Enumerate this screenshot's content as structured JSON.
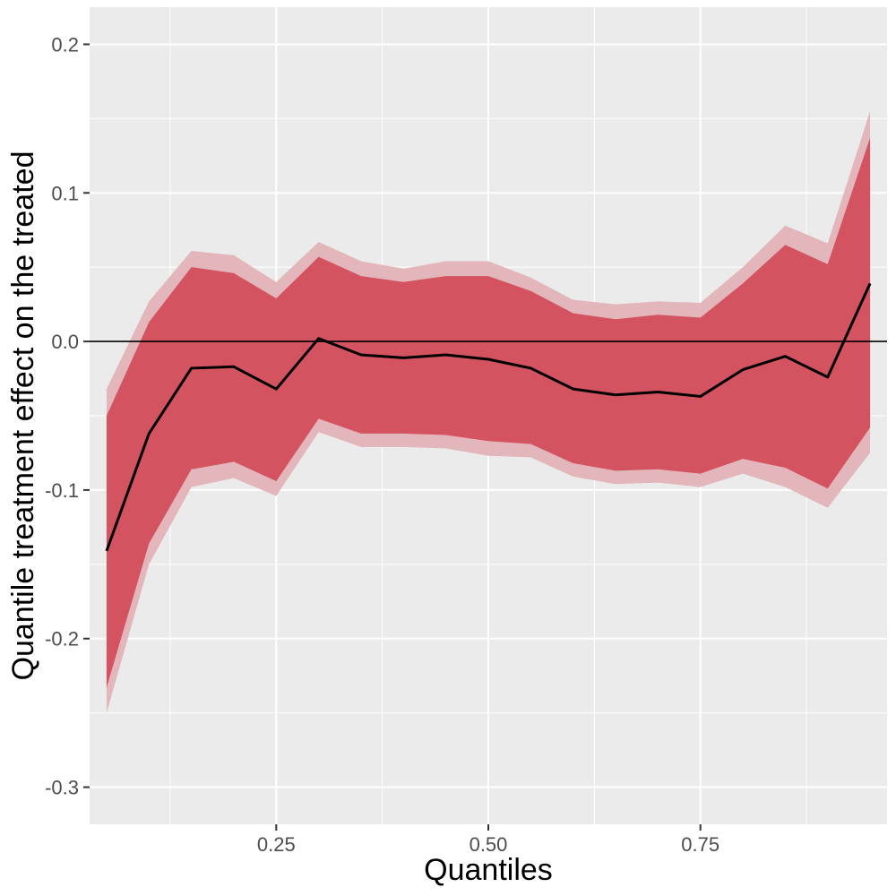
{
  "chart_data": {
    "type": "area",
    "title": "",
    "xlabel": "Quantiles",
    "ylabel": "Quantile treatment effect on the treated",
    "xlim": [
      0.03,
      0.97
    ],
    "ylim": [
      -0.325,
      0.225
    ],
    "x_ticks": [
      {
        "value": 0.25,
        "label": "0.25"
      },
      {
        "value": 0.5,
        "label": "0.50"
      },
      {
        "value": 0.75,
        "label": "0.75"
      }
    ],
    "y_ticks": [
      {
        "value": -0.3,
        "label": "-0.3"
      },
      {
        "value": -0.2,
        "label": "-0.2"
      },
      {
        "value": -0.1,
        "label": "-0.1"
      },
      {
        "value": 0.0,
        "label": "0.0"
      },
      {
        "value": 0.1,
        "label": "0.1"
      },
      {
        "value": 0.2,
        "label": "0.2"
      }
    ],
    "reference_line_y": 0,
    "grid": true,
    "x": [
      0.05,
      0.1,
      0.15,
      0.2,
      0.25,
      0.3,
      0.35,
      0.4,
      0.45,
      0.5,
      0.55,
      0.6,
      0.65,
      0.7,
      0.75,
      0.8,
      0.85,
      0.9,
      0.95
    ],
    "series": [
      {
        "values": [
          -0.141,
          -0.062,
          -0.018,
          -0.017,
          -0.032,
          0.002,
          -0.009,
          -0.011,
          -0.009,
          -0.012,
          -0.018,
          -0.032,
          -0.036,
          -0.034,
          -0.037,
          -0.019,
          -0.01,
          -0.024,
          0.039
        ]
      }
    ],
    "bands": [
      {
        "lower": [
          -0.25,
          -0.15,
          -0.098,
          -0.092,
          -0.104,
          -0.061,
          -0.071,
          -0.071,
          -0.072,
          -0.077,
          -0.078,
          -0.091,
          -0.096,
          -0.095,
          -0.098,
          -0.089,
          -0.098,
          -0.112,
          -0.075
        ],
        "upper": [
          -0.032,
          0.027,
          0.061,
          0.058,
          0.04,
          0.067,
          0.054,
          0.049,
          0.054,
          0.054,
          0.043,
          0.028,
          0.025,
          0.027,
          0.026,
          0.05,
          0.078,
          0.066,
          0.155
        ]
      },
      {
        "lower": [
          -0.233,
          -0.136,
          -0.086,
          -0.081,
          -0.094,
          -0.052,
          -0.062,
          -0.062,
          -0.063,
          -0.067,
          -0.069,
          -0.082,
          -0.087,
          -0.086,
          -0.089,
          -0.079,
          -0.085,
          -0.099,
          -0.058
        ],
        "upper": [
          -0.05,
          0.013,
          0.05,
          0.046,
          0.029,
          0.057,
          0.044,
          0.04,
          0.044,
          0.044,
          0.034,
          0.019,
          0.015,
          0.018,
          0.016,
          0.039,
          0.065,
          0.052,
          0.137
        ]
      }
    ],
    "colors": {
      "panel": "#ebebeb",
      "grid": "#ffffff",
      "outer_band": "#e3b6bb",
      "inner_band": "#d35360",
      "line": "#000000",
      "tick_label": "#4d4d4d",
      "axis_title": "#000000"
    }
  }
}
